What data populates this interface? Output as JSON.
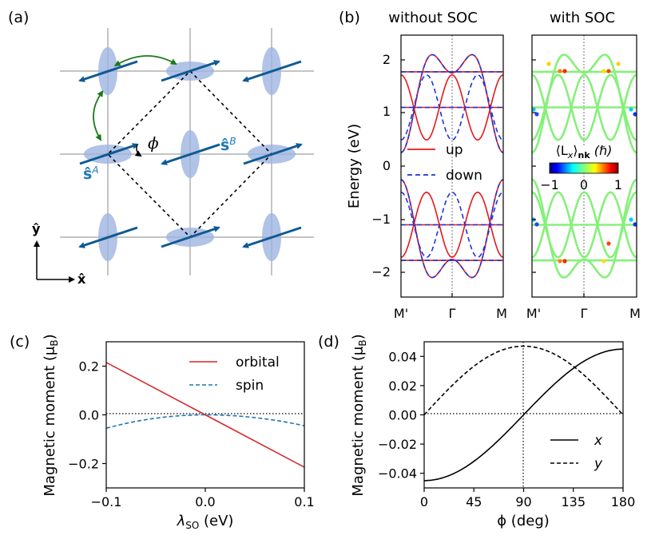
{
  "panel_labels": {
    "a": "(a)",
    "b": "(b)",
    "c": "(c)",
    "d": "(d)"
  },
  "panel_a": {
    "s_a_label": "ŝ",
    "s_a_sup": "A",
    "s_b_label": "ŝ",
    "s_b_sup": "B",
    "phi_label": "ϕ",
    "x_axis_label": "x̂",
    "y_axis_label": "ŷ"
  },
  "panel_b": {
    "title_left": "without SOC",
    "title_right": "with SOC",
    "ylabel": "Energy (eV)",
    "ylim": [
      -2.5,
      2.5
    ],
    "yticks": [
      "2",
      "1",
      "0",
      "−1",
      "−2"
    ],
    "xticks": [
      "M'",
      "Γ",
      "M"
    ],
    "legend": {
      "up": "up",
      "down": "down"
    },
    "colorbar": {
      "label_main": "⟨L",
      "label_sub_x": "x",
      "label_close": "⟩",
      "label_sub_nk": "nk",
      "label_unit": " (ℏ)",
      "ticks": [
        "−1",
        "0",
        "1"
      ]
    }
  },
  "chart_data": [
    {
      "type": "line",
      "panel": "c",
      "title": "",
      "xlabel": "λ",
      "xlabel_sub": "SO",
      "xlabel_unit": " (eV)",
      "ylabel": "Magnetic moment (μ",
      "ylabel_sub": "B",
      "ylabel_close": ")",
      "xlim": [
        -0.1,
        0.1
      ],
      "ylim": [
        -0.3,
        0.3
      ],
      "xticks": [
        "−0.1",
        "0.0",
        "0.1"
      ],
      "yticks": [
        "0.2",
        "0.0",
        "−0.2"
      ],
      "series": [
        {
          "name": "orbital",
          "color": "#d62728",
          "style": "solid",
          "x": [
            -0.1,
            0.0,
            0.1
          ],
          "y": [
            0.215,
            0.0,
            -0.215
          ]
        },
        {
          "name": "spin",
          "color": "#1f77b4",
          "style": "dashed",
          "x": [
            -0.1,
            -0.05,
            0.0,
            0.05,
            0.1
          ],
          "y": [
            -0.055,
            -0.014,
            0.0,
            -0.012,
            -0.045
          ]
        }
      ]
    },
    {
      "type": "line",
      "panel": "d",
      "title": "",
      "xlabel": "ϕ (deg)",
      "ylabel": "Magnetic moment (μ",
      "ylabel_sub": "B",
      "ylabel_close": ")",
      "xlim": [
        0,
        180
      ],
      "ylim": [
        -0.05,
        0.05
      ],
      "xticks": [
        "0",
        "45",
        "90",
        "135",
        "180"
      ],
      "yticks": [
        "0.04",
        "0.02",
        "0.00",
        "−0.02",
        "−0.04"
      ],
      "series": [
        {
          "name": "x",
          "color": "#000000",
          "style": "solid",
          "x": [
            0,
            45,
            90,
            135,
            180
          ],
          "y": [
            -0.045,
            -0.032,
            0.0,
            0.032,
            0.045
          ]
        },
        {
          "name": "y",
          "color": "#000000",
          "style": "dashed",
          "x": [
            0,
            45,
            90,
            135,
            180
          ],
          "y": [
            0.0,
            0.033,
            0.047,
            0.033,
            0.0
          ]
        }
      ]
    }
  ]
}
